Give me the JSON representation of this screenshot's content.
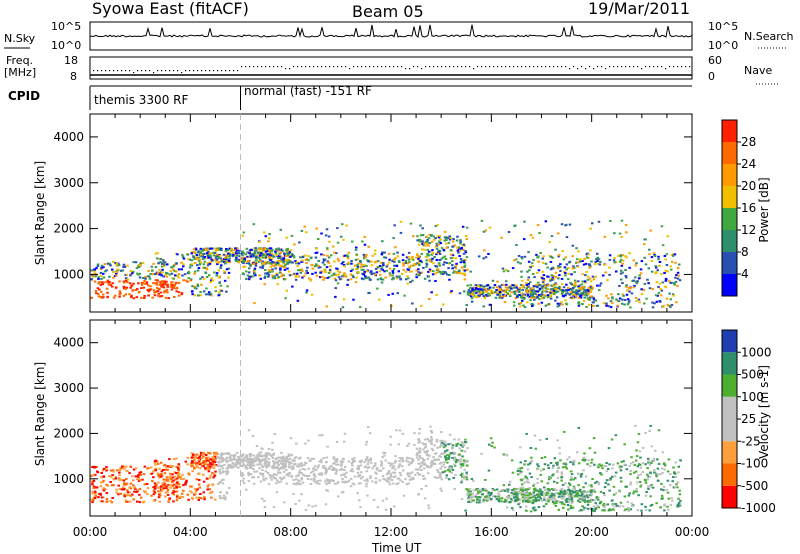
{
  "header": {
    "station": "Syowa East (fitACF)",
    "beam": "Beam 05",
    "date": "19/Mar/2011"
  },
  "status_panel": {
    "nsky_label": "N.Sky",
    "nsearch_label": "N.Search",
    "left_ticks": [
      "10^5",
      "10^0"
    ],
    "right_ticks": [
      "10^5",
      "10^0"
    ]
  },
  "freq_panel": {
    "label_line1": "Freq.",
    "label_line2": "[MHz]",
    "left_ticks": [
      "18",
      "8"
    ],
    "right_ticks": [
      "60",
      "0"
    ],
    "nave_label": "Nave"
  },
  "cpid": {
    "label": "CPID",
    "mode1": "themis 3300 RF",
    "mode2": "normal (fast) -151 RF",
    "mode2_start_hour": 6
  },
  "colors": {
    "power_scale": [
      "#0000ff",
      "#2a4fb3",
      "#2f8f6a",
      "#40a840",
      "#f0c000",
      "#ff9a00",
      "#ff6a00",
      "#ff2000"
    ],
    "velocity_scale": [
      "#ff0000",
      "#ff6a00",
      "#ff9f3c",
      "#c0c0c0",
      "#c0c0c0",
      "#4caf30",
      "#2f8f6a",
      "#1f3fb0"
    ]
  },
  "chart_data": [
    {
      "type": "heatmap",
      "title": "Power",
      "ylabel": "Slant Range [km]",
      "xlabel": "Time UT",
      "xlim_hours": [
        0,
        24
      ],
      "ylim": [
        180,
        4500
      ],
      "yticks": [
        "1000",
        "2000",
        "3000",
        "4000"
      ],
      "xticks": [
        "00:00",
        "04:00",
        "08:00",
        "12:00",
        "16:00",
        "20:00",
        "00:00"
      ],
      "colorbar": {
        "label": "Power [dB]",
        "ticks": [
          "4",
          "8",
          "12",
          "16",
          "20",
          "24",
          "28"
        ]
      }
    },
    {
      "type": "heatmap",
      "title": "Velocity",
      "ylabel": "Slant Range [km]",
      "xlabel": "Time UT",
      "xlim_hours": [
        0,
        24
      ],
      "ylim": [
        180,
        4500
      ],
      "yticks": [
        "1000",
        "2000",
        "3000",
        "4000"
      ],
      "xticks": [
        "00:00",
        "04:00",
        "08:00",
        "12:00",
        "16:00",
        "20:00",
        "00:00"
      ],
      "colorbar": {
        "label": "Velocity [m s-1]",
        "ticks": [
          "1000",
          "500",
          "100",
          "25",
          "-25",
          "-100",
          "-500",
          "-1000"
        ]
      }
    }
  ]
}
